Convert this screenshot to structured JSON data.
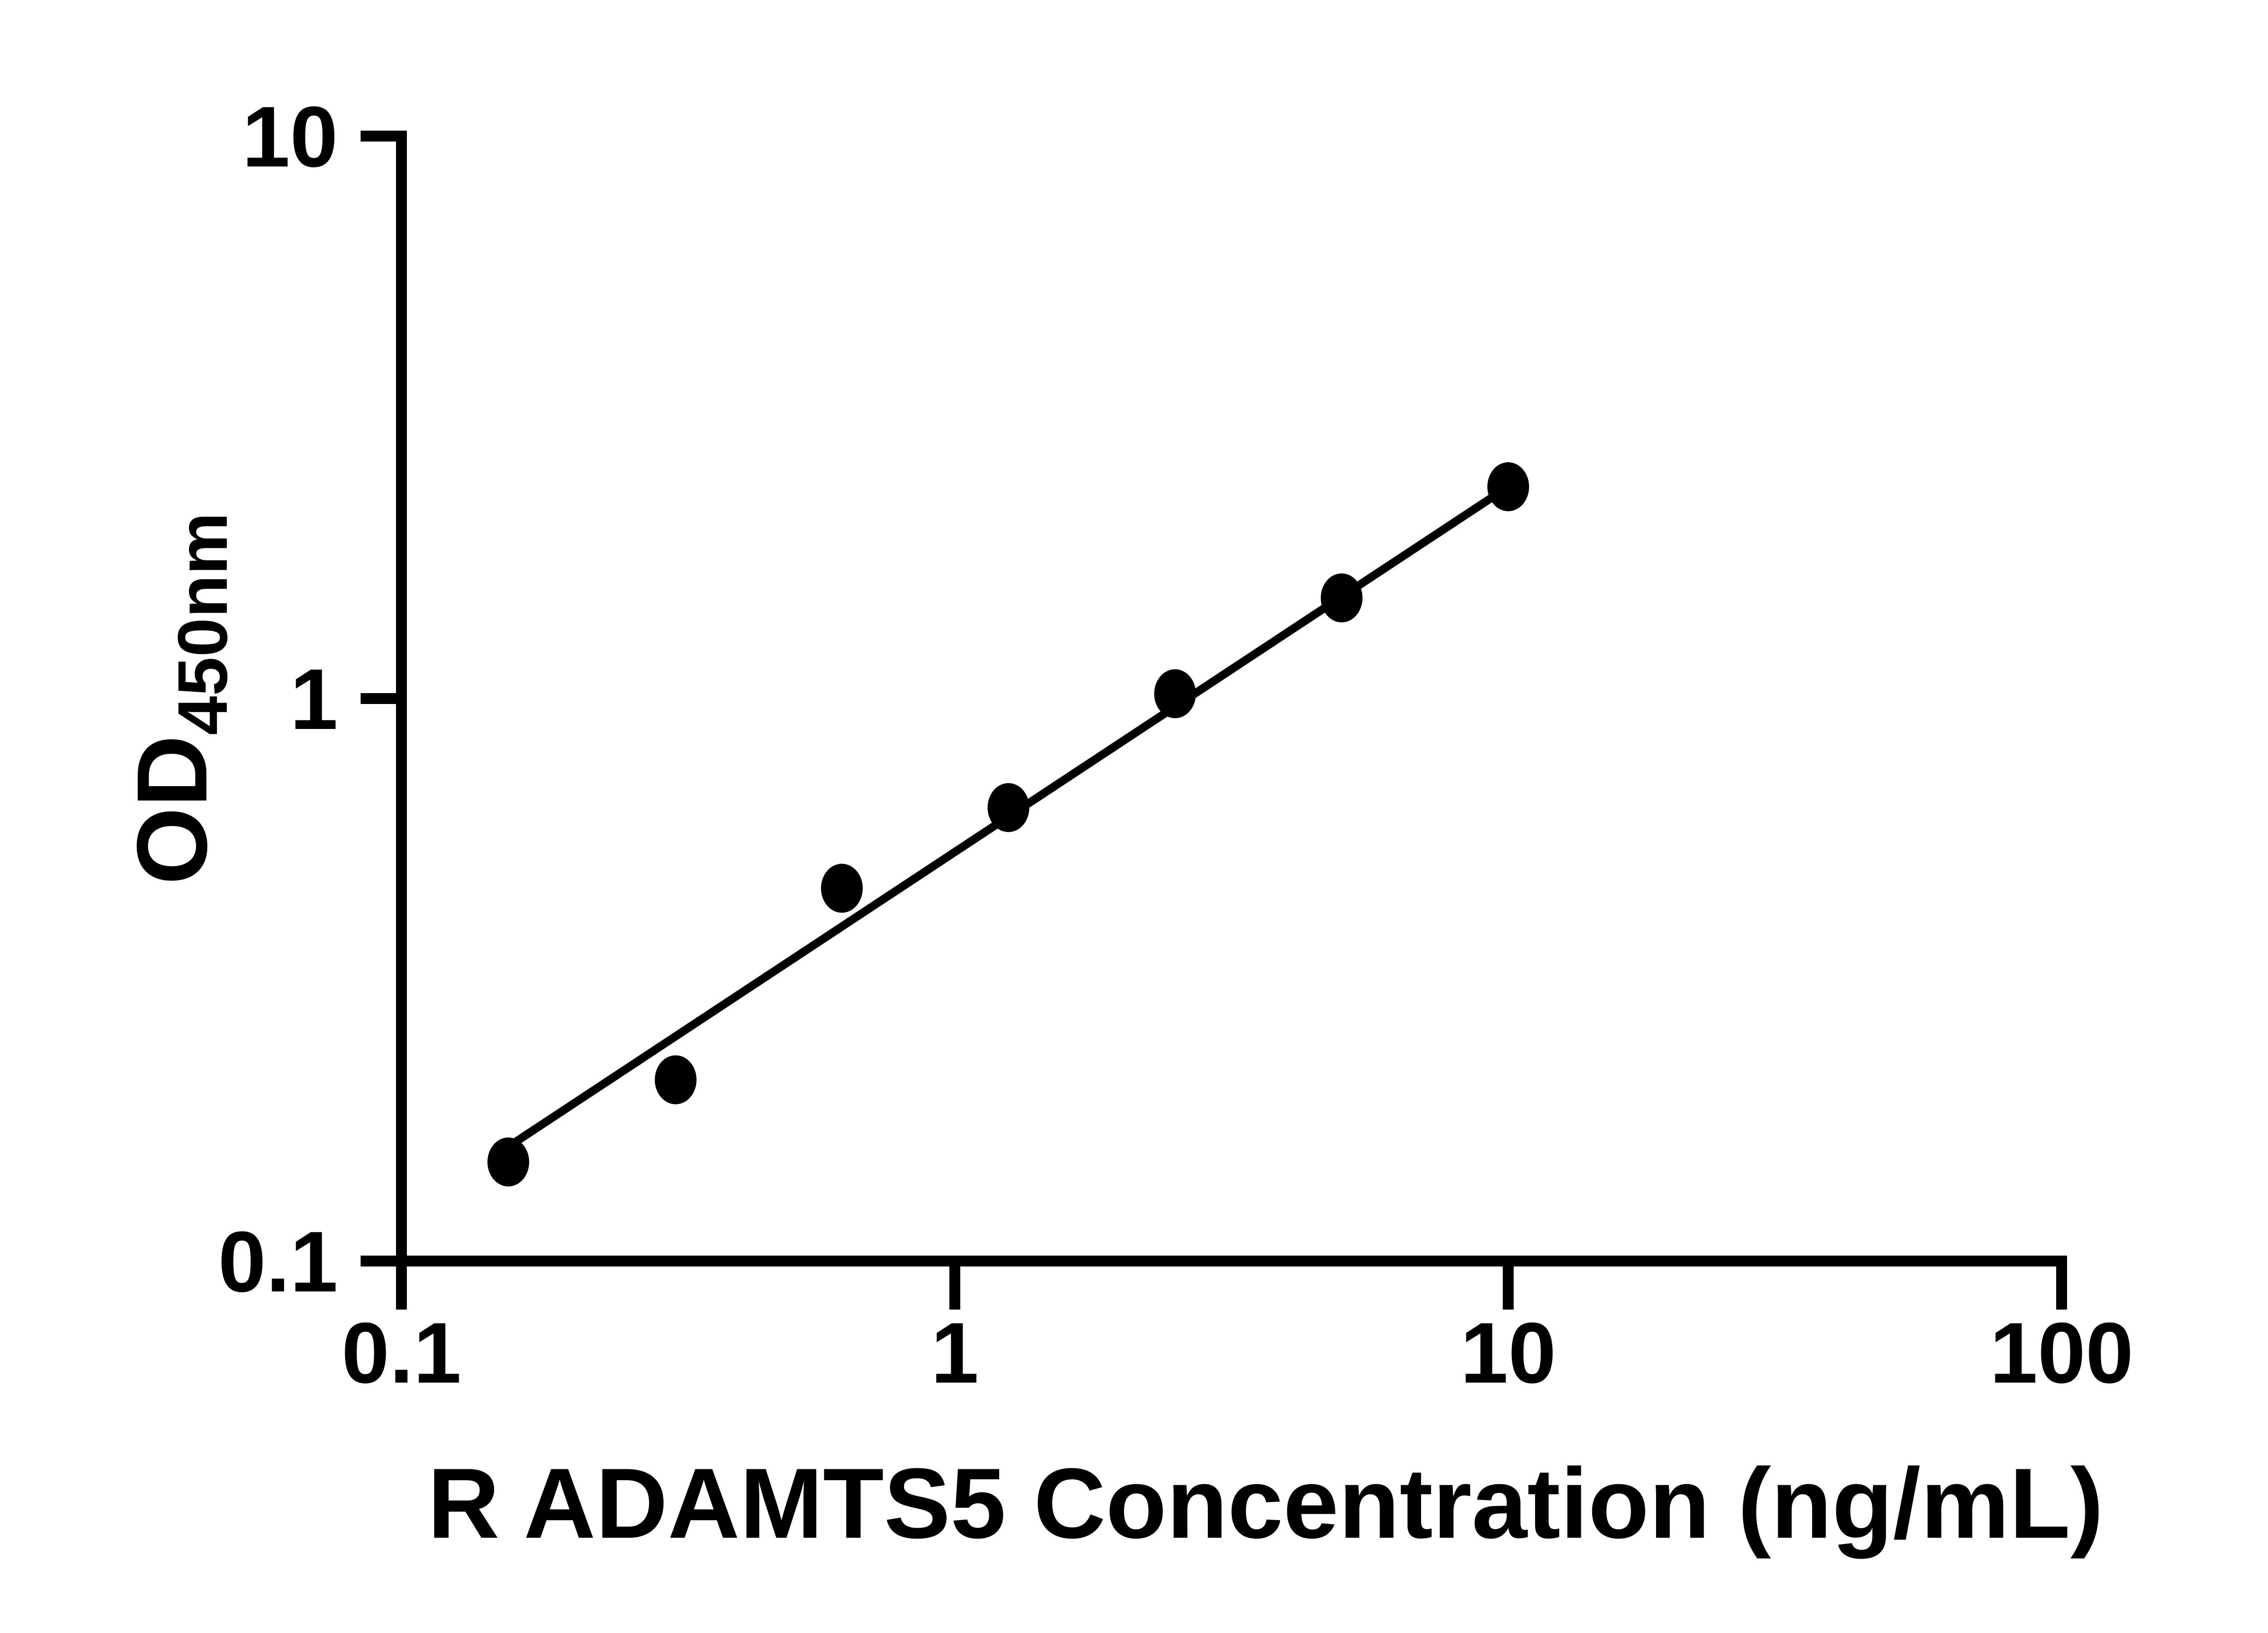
{
  "chart_data": {
    "type": "scatter",
    "scale": "log-log",
    "title": "",
    "xlabel": "R ADAMTS5 Concentration (ng/mL)",
    "ylabel_main": "OD",
    "ylabel_sub": "450nm",
    "x_values": [
      0.156,
      0.313,
      0.625,
      1.25,
      2.5,
      5,
      10
    ],
    "od_values": [
      0.15,
      0.21,
      0.46,
      0.64,
      1.02,
      1.51,
      2.38
    ],
    "trendline": {
      "x1": 0.158,
      "y1": 0.161,
      "x2": 10,
      "y2": 2.38
    },
    "x_ticks": [
      0.1,
      1,
      10,
      100
    ],
    "x_tick_labels": [
      "0.1",
      "1",
      "10",
      "100"
    ],
    "y_ticks": [
      10,
      1,
      0.1
    ],
    "y_tick_labels": [
      "10",
      "1",
      "0.1"
    ],
    "xlim": [
      0.1,
      100
    ],
    "ylim": [
      0.1,
      10
    ],
    "grid": false,
    "legend": null,
    "marker_color": "#000000",
    "line_color": "#000000",
    "axis_color": "#000000",
    "background": "#ffffff"
  }
}
